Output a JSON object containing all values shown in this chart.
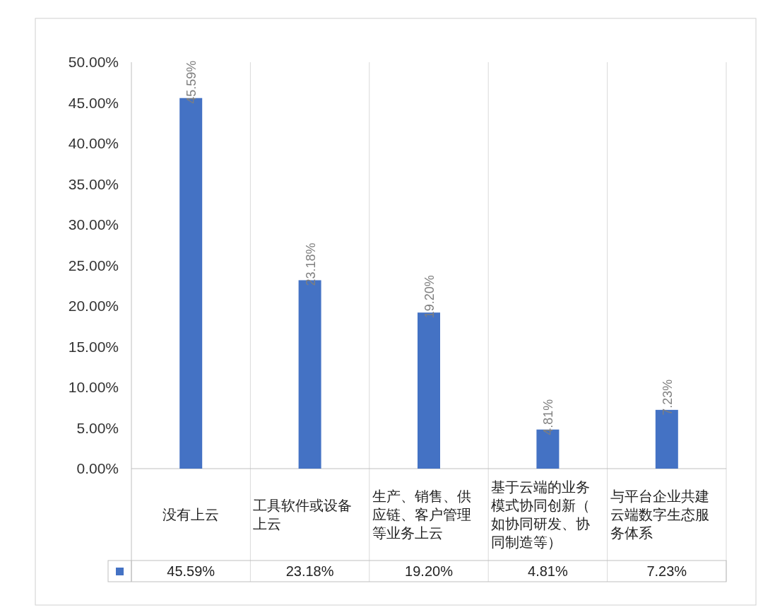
{
  "chart_data": {
    "type": "bar",
    "categories": [
      "没有上云",
      "工具软件或设备上云",
      "生产、销售、供应链、客户管理等业务上云",
      "基于云端的业务模式协同创新（如协同研发、协同制造等）",
      "与平台企业共建云端数字生态服务体系"
    ],
    "values": [
      45.59,
      23.18,
      19.2,
      4.81,
      7.23
    ],
    "value_labels": [
      "45.59%",
      "23.18%",
      "19.20%",
      "4.81%",
      "7.23%"
    ],
    "color": "#4472c4",
    "ylim": [
      0,
      50
    ],
    "yticks": [
      {
        "value": 0,
        "label": "0.00%"
      },
      {
        "value": 5,
        "label": "5.00%"
      },
      {
        "value": 10,
        "label": "10.00%"
      },
      {
        "value": 15,
        "label": "15.00%"
      },
      {
        "value": 20,
        "label": "20.00%"
      },
      {
        "value": 25,
        "label": "25.00%"
      },
      {
        "value": 30,
        "label": "30.00%"
      },
      {
        "value": 35,
        "label": "35.00%"
      },
      {
        "value": 40,
        "label": "40.00%"
      },
      {
        "value": 45,
        "label": "45.00%"
      },
      {
        "value": 50,
        "label": "50.00%"
      }
    ]
  }
}
